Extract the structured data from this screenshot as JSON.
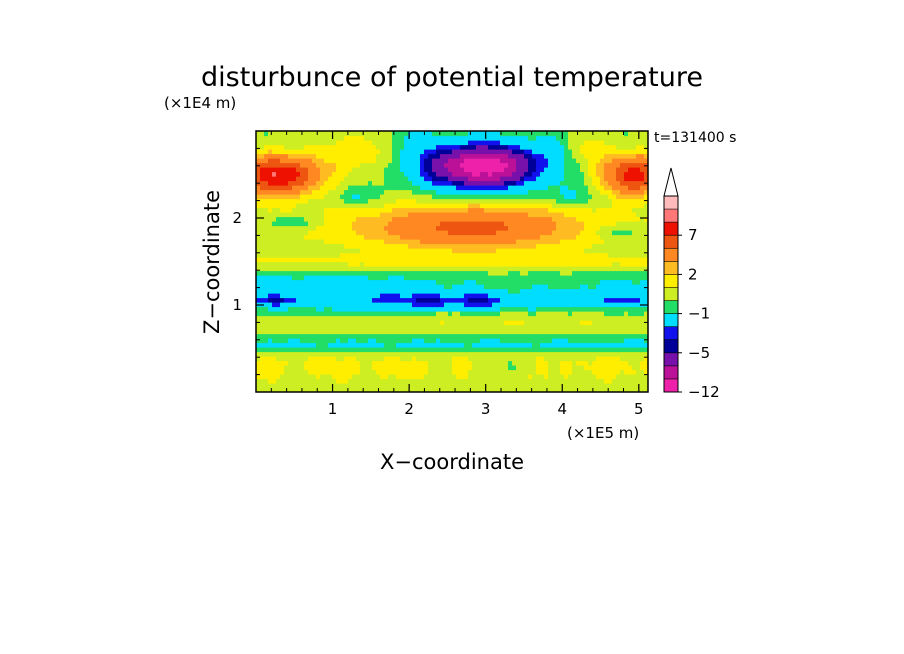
{
  "chart_data": {
    "type": "heatmap",
    "title": "disturbunce of potential temperature",
    "time_label": "t=131400 s",
    "xlabel": "X−coordinate",
    "ylabel": "Z−coordinate",
    "x_unit": "(×1E5 m)",
    "y_unit": "(×1E4 m)",
    "xlim": [
      0,
      5.12
    ],
    "ylim": [
      0,
      3.0
    ],
    "x_ticks": [
      {
        "value": 1,
        "label": "1"
      },
      {
        "value": 2,
        "label": "2"
      },
      {
        "value": 3,
        "label": "3"
      },
      {
        "value": 4,
        "label": "4"
      },
      {
        "value": 5,
        "label": "5"
      }
    ],
    "y_ticks": [
      {
        "value": 1,
        "label": "1"
      },
      {
        "value": 2,
        "label": "2"
      }
    ],
    "colorbar": {
      "levels": [
        -12,
        -9,
        -7,
        -5,
        -4,
        -3,
        -1,
        0,
        1,
        2,
        3,
        5,
        7,
        9,
        11
      ],
      "colors": [
        "#ee22aa",
        "#bb1199",
        "#7711aa",
        "#000099",
        "#1111ee",
        "#00ddff",
        "#22dd66",
        "#ccee22",
        "#ffee00",
        "#ffbb22",
        "#ff8822",
        "#ee5511",
        "#ee1100",
        "#ff7777",
        "#ffbbbb"
      ],
      "labels": [
        {
          "value": -12,
          "label": "−12"
        },
        {
          "value": -5,
          "label": "−5"
        },
        {
          "value": -1,
          "label": "−1"
        },
        {
          "value": 2,
          "label": "2"
        },
        {
          "value": 7,
          "label": "7"
        }
      ],
      "extend": "max"
    },
    "features": [
      {
        "name": "upper-left warm core",
        "x": 0.25,
        "z": 2.5,
        "value": 9
      },
      {
        "name": "upper-right warm core",
        "x": 4.95,
        "z": 2.5,
        "value": 8
      },
      {
        "name": "upper cold core",
        "x": 2.95,
        "z": 2.6,
        "value": -10
      },
      {
        "name": "mid-level warm band",
        "x": 2.7,
        "z": 1.9,
        "value": 4
      },
      {
        "name": "lower cold band",
        "x": 2.5,
        "z": 1.05,
        "value": -4
      },
      {
        "name": "surface mixed layer",
        "x": 2.5,
        "z": 0.3,
        "value": 1
      }
    ]
  }
}
